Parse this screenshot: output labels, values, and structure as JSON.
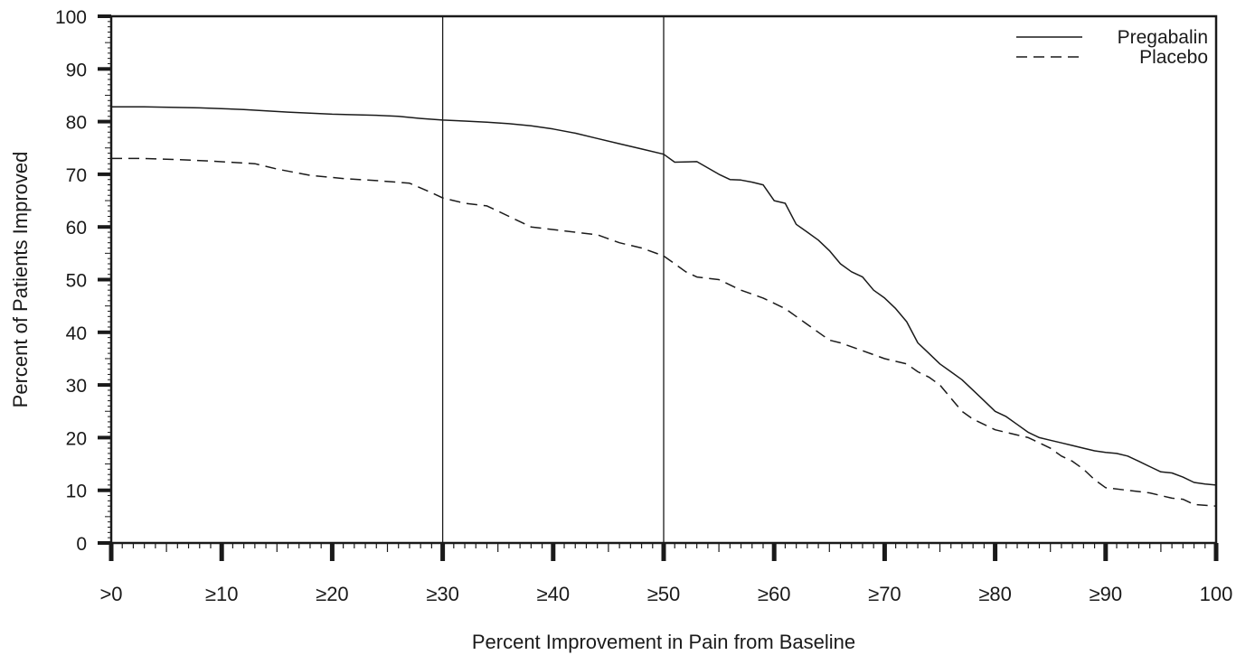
{
  "chart_data": {
    "type": "line",
    "title": "",
    "xlabel": "Percent Improvement in Pain from Baseline",
    "ylabel": "Percent of Patients Improved",
    "xlim": [
      0,
      100
    ],
    "ylim": [
      0,
      100
    ],
    "x_ticks": [
      {
        "value": 0,
        "label": ">0"
      },
      {
        "value": 10,
        "label": "≥10"
      },
      {
        "value": 20,
        "label": "≥20"
      },
      {
        "value": 30,
        "label": "≥30"
      },
      {
        "value": 40,
        "label": "≥40"
      },
      {
        "value": 50,
        "label": "≥50"
      },
      {
        "value": 60,
        "label": "≥60"
      },
      {
        "value": 70,
        "label": "≥70"
      },
      {
        "value": 80,
        "label": "≥80"
      },
      {
        "value": 90,
        "label": "≥90"
      },
      {
        "value": 100,
        "label": "100"
      }
    ],
    "y_ticks": [
      {
        "value": 0,
        "label": "0"
      },
      {
        "value": 10,
        "label": "10"
      },
      {
        "value": 20,
        "label": "20"
      },
      {
        "value": 30,
        "label": "30"
      },
      {
        "value": 40,
        "label": "40"
      },
      {
        "value": 50,
        "label": "50"
      },
      {
        "value": 60,
        "label": "60"
      },
      {
        "value": 70,
        "label": "70"
      },
      {
        "value": 80,
        "label": "80"
      },
      {
        "value": 90,
        "label": "90"
      },
      {
        "value": 100,
        "label": "100"
      }
    ],
    "reference_lines_x": [
      30,
      50
    ],
    "grid": false,
    "legend": "top-right",
    "series": [
      {
        "name": "Pregabalin",
        "style": "solid",
        "color": "#1a1a1a",
        "x": [
          0,
          3,
          8,
          12,
          16,
          20,
          24,
          26,
          28,
          30,
          32,
          34,
          36,
          38,
          40,
          42,
          44,
          46,
          48,
          50,
          51,
          53,
          55,
          56,
          57,
          58,
          59,
          60,
          61,
          62,
          63,
          64,
          65,
          66,
          67,
          68,
          69,
          70,
          71,
          72,
          73,
          74,
          75,
          76,
          77,
          78,
          79,
          80,
          81,
          82,
          83,
          84,
          85,
          86,
          87,
          88,
          89,
          90,
          91,
          92,
          93,
          94,
          95,
          96,
          97,
          98,
          99,
          100
        ],
        "y": [
          82.8,
          82.8,
          82.6,
          82.3,
          81.8,
          81.4,
          81.2,
          81.0,
          80.6,
          80.3,
          80.1,
          79.9,
          79.6,
          79.2,
          78.6,
          77.8,
          76.8,
          75.8,
          74.8,
          73.8,
          72.3,
          72.4,
          70.0,
          69.0,
          68.9,
          68.5,
          68.0,
          65.0,
          64.5,
          60.5,
          59.0,
          57.5,
          55.5,
          53.0,
          51.5,
          50.5,
          48.0,
          46.5,
          44.5,
          42.0,
          38.0,
          36.0,
          34.0,
          32.5,
          31.0,
          29.0,
          27.0,
          25.0,
          24.0,
          22.5,
          21.0,
          20.0,
          19.5,
          19.0,
          18.5,
          18.0,
          17.5,
          17.2,
          17.0,
          16.5,
          15.5,
          14.5,
          13.5,
          13.3,
          12.5,
          11.5,
          11.2,
          11.0
        ]
      },
      {
        "name": "Placebo",
        "style": "dashed",
        "color": "#1a1a1a",
        "x": [
          0,
          3,
          6,
          9,
          13,
          15,
          18,
          21,
          24,
          27,
          29,
          30,
          32,
          34,
          36,
          38,
          40,
          42,
          44,
          46,
          48,
          50,
          51,
          52,
          53,
          55,
          57,
          59,
          61,
          62,
          63,
          64,
          65,
          66,
          68,
          70,
          72,
          73,
          74,
          75,
          76,
          77,
          78,
          79,
          80,
          81,
          82,
          83,
          84,
          85,
          86,
          87,
          88,
          89,
          90,
          92,
          94,
          96,
          97,
          98,
          100
        ],
        "y": [
          73.0,
          73.0,
          72.8,
          72.5,
          72.0,
          71.0,
          69.8,
          69.2,
          68.8,
          68.3,
          66.5,
          65.5,
          64.5,
          64.0,
          62.0,
          60.0,
          59.5,
          59.0,
          58.5,
          57.0,
          56.0,
          54.5,
          53.0,
          51.5,
          50.5,
          50.0,
          48.0,
          46.5,
          44.5,
          43.0,
          41.5,
          40.0,
          38.5,
          38.0,
          36.5,
          35.0,
          34.0,
          32.5,
          31.5,
          30.0,
          27.5,
          25.0,
          23.5,
          22.5,
          21.5,
          21.0,
          20.5,
          20.0,
          19.0,
          18.0,
          16.5,
          15.5,
          14.0,
          12.0,
          10.5,
          10.0,
          9.5,
          8.5,
          8.3,
          7.3,
          7.0
        ]
      }
    ]
  }
}
